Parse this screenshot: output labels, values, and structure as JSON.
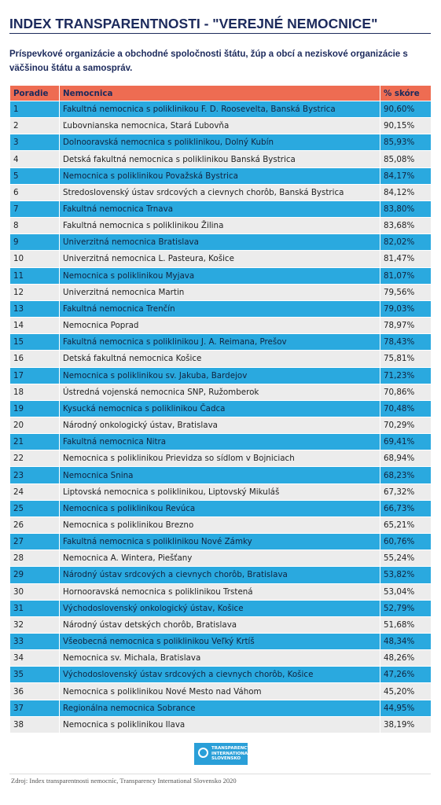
{
  "header": {
    "title": "INDEX TRANSPARENTNOSTI - \"VEREJNÉ NEMOCNICE\"",
    "subtitle": "Príspevkové organizácie a obchodné spoločnosti štátu, žúp a obcí a neziskové organizácie s väčšinou štátu a samospráv."
  },
  "table": {
    "columns": [
      "Poradie",
      "Nemocnica",
      "% skóre"
    ],
    "rows": [
      [
        "1",
        "Fakultná nemocnica s poliklinikou F. D. Roosevelta, Banská Bystrica",
        "90,60%"
      ],
      [
        "2",
        "Ľubovnianska nemocnica, Stará Ľubovňa",
        "90,15%"
      ],
      [
        "3",
        "Dolnooravská nemocnica s poliklinikou, Dolný Kubín",
        "85,93%"
      ],
      [
        "4",
        "Detská fakultná nemocnica s poliklinikou Banská Bystrica",
        "85,08%"
      ],
      [
        "5",
        "Nemocnica s poliklinikou Považská Bystrica",
        "84,17%"
      ],
      [
        "6",
        "Stredoslovenský ústav srdcových a cievnych chorôb, Banská Bystrica",
        "84,12%"
      ],
      [
        "7",
        "Fakultná nemocnica Trnava",
        "83,80%"
      ],
      [
        "8",
        "Fakultná nemocnica s poliklinikou Žilina",
        "83,68%"
      ],
      [
        "9",
        "Univerzitná nemocnica Bratislava",
        "82,02%"
      ],
      [
        "10",
        "Univerzitná nemocnica L. Pasteura, Košice",
        "81,47%"
      ],
      [
        "11",
        "Nemocnica s poliklinikou Myjava",
        "81,07%"
      ],
      [
        "12",
        "Univerzitná nemocnica Martin",
        "79,56%"
      ],
      [
        "13",
        "Fakultná nemocnica Trenčín",
        "79,03%"
      ],
      [
        "14",
        "Nemocnica Poprad",
        "78,97%"
      ],
      [
        "15",
        "Fakultná nemocnica s poliklinikou J. A. Reimana, Prešov",
        "78,43%"
      ],
      [
        "16",
        "Detská fakultná nemocnica Košice",
        "75,81%"
      ],
      [
        "17",
        "Nemocnica s poliklinikou sv. Jakuba, Bardejov",
        "71,23%"
      ],
      [
        "18",
        "Ústredná vojenská nemocnica SNP, Ružomberok",
        "70,86%"
      ],
      [
        "19",
        "Kysucká nemocnica s poliklinikou Čadca",
        "70,48%"
      ],
      [
        "20",
        "Národný onkologický ústav, Bratislava",
        "70,29%"
      ],
      [
        "21",
        "Fakultná nemocnica Nitra",
        "69,41%"
      ],
      [
        "22",
        "Nemocnica s poliklinikou Prievidza so sídlom v Bojniciach",
        "68,94%"
      ],
      [
        "23",
        "Nemocnica Snina",
        "68,23%"
      ],
      [
        "24",
        "Liptovská nemocnica s poliklinikou, Liptovský Mikuláš",
        "67,32%"
      ],
      [
        "25",
        "Nemocnica s poliklinikou Revúca",
        "66,73%"
      ],
      [
        "26",
        "Nemocnica s poliklinikou Brezno",
        "65,21%"
      ],
      [
        "27",
        "Fakultná nemocnica s poliklinikou Nové Zámky",
        "60,76%"
      ],
      [
        "28",
        "Nemocnica A. Wintera, Piešťany",
        "55,24%"
      ],
      [
        "29",
        "Národný ústav srdcových a cievnych chorôb, Bratislava",
        "53,82%"
      ],
      [
        "30",
        "Hornooravská nemocnica s poliklinikou Trstená",
        "53,04%"
      ],
      [
        "31",
        "Východoslovenský onkologický ústav, Košice",
        "52,79%"
      ],
      [
        "32",
        "Národný ústav detských chorôb, Bratislava",
        "51,68%"
      ],
      [
        "33",
        "Všeobecná nemocnica s poliklinikou Veľký Krtíš",
        "48,34%"
      ],
      [
        "34",
        "Nemocnica sv. Michala, Bratislava",
        "48,26%"
      ],
      [
        "35",
        "Východoslovenský ústav srdcových a cievnych chorôb, Košice",
        "47,26%"
      ],
      [
        "36",
        "Nemocnica s poliklinikou Nové Mesto nad Váhom",
        "45,20%"
      ],
      [
        "37",
        "Regionálna nemocnica Sobrance",
        "44,95%"
      ],
      [
        "38",
        "Nemocnica s poliklinikou Ilava",
        "38,19%"
      ]
    ]
  },
  "logo": {
    "line1": "TRANSPARENCY",
    "line2": "INTERNATIONAL",
    "line3": "SLOVENSKO"
  },
  "footer": {
    "source": "Zdroj: Index transparentnosti nemocníc, Transparency International Slovensko 2020"
  }
}
